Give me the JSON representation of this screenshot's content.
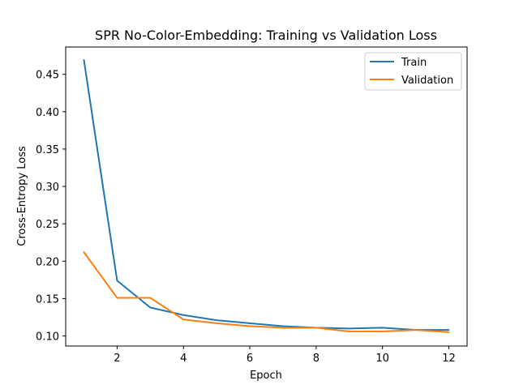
{
  "chart_data": {
    "type": "line",
    "title": "SPR No-Color-Embedding: Training vs Validation Loss",
    "xlabel": "Epoch",
    "ylabel": "Cross-Entropy Loss",
    "x": [
      1,
      2,
      3,
      4,
      5,
      6,
      7,
      8,
      9,
      10,
      11,
      12
    ],
    "xlim": [
      0.45,
      12.55
    ],
    "ylim": [
      0.0865,
      0.4865
    ],
    "xticks": [
      2,
      4,
      6,
      8,
      10,
      12
    ],
    "yticks": [
      0.1,
      0.15,
      0.2,
      0.25,
      0.3,
      0.35,
      0.4,
      0.45
    ],
    "xtick_labels": [
      "2",
      "4",
      "6",
      "8",
      "10",
      "12"
    ],
    "ytick_labels": [
      "0.10",
      "0.15",
      "0.20",
      "0.25",
      "0.30",
      "0.35",
      "0.40",
      "0.45"
    ],
    "grid": false,
    "legend_position": "top-right",
    "series": [
      {
        "name": "Train",
        "color": "#1f77b4",
        "values": [
          0.469,
          0.174,
          0.138,
          0.128,
          0.121,
          0.117,
          0.113,
          0.111,
          0.11,
          0.111,
          0.108,
          0.108
        ]
      },
      {
        "name": "Validation",
        "color": "#ff7f0e",
        "values": [
          0.212,
          0.151,
          0.151,
          0.122,
          0.117,
          0.113,
          0.111,
          0.111,
          0.106,
          0.106,
          0.108,
          0.105
        ]
      }
    ]
  }
}
